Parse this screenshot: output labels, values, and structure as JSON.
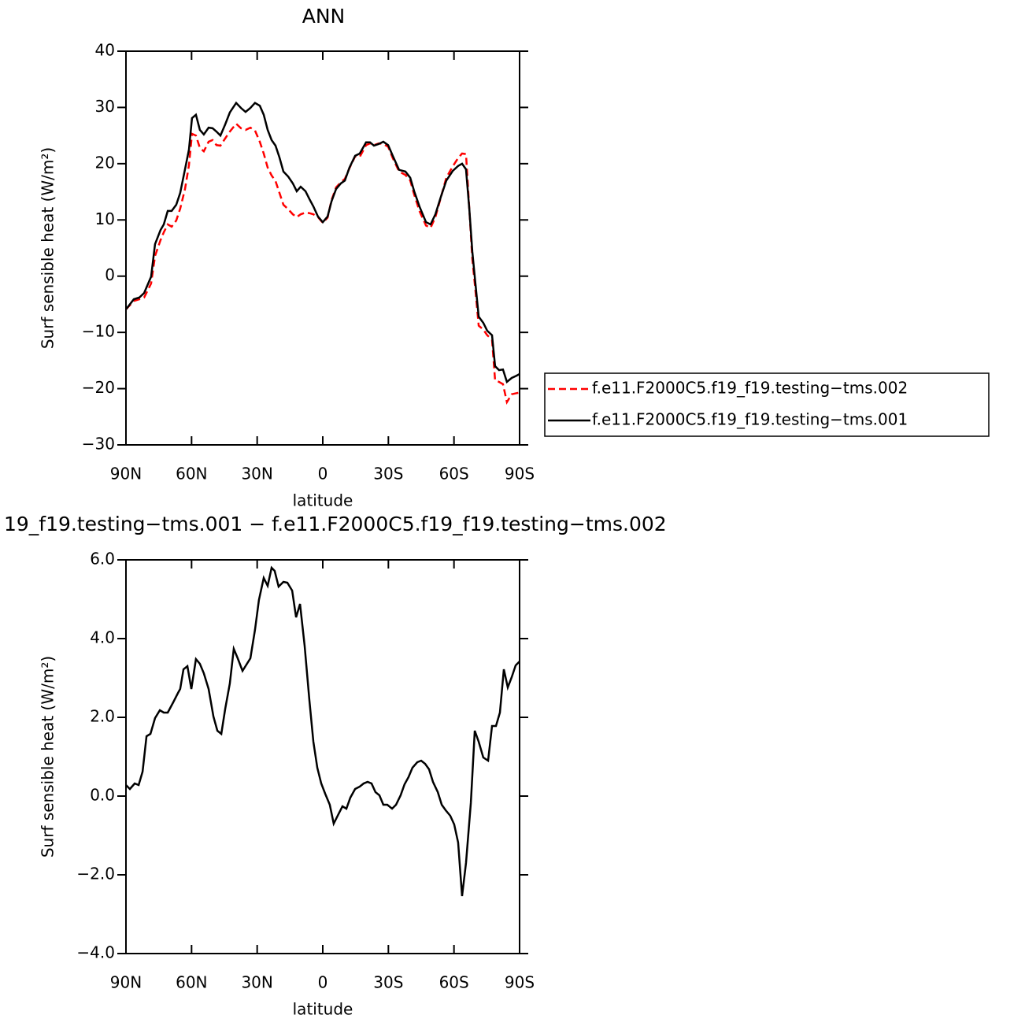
{
  "chart_data": [
    {
      "type": "line",
      "title": "ANN",
      "xlabel": "latitude",
      "ylabel": "Surf sensible heat (W/m²)",
      "xlim": [
        90,
        -90
      ],
      "ylim": [
        -30,
        40
      ],
      "xticks": [
        {
          "value": 90,
          "label": "90N"
        },
        {
          "value": 60,
          "label": "60N"
        },
        {
          "value": 30,
          "label": "30N"
        },
        0,
        {
          "value": -30,
          "label": "30S"
        },
        {
          "value": -60,
          "label": "60S"
        },
        {
          "value": -90,
          "label": "90S"
        }
      ],
      "yticks": [
        40,
        30,
        20,
        10,
        0,
        {
          "value": -10,
          "label": "−10"
        },
        {
          "value": -20,
          "label": "−20"
        },
        {
          "value": -30,
          "label": "−30"
        }
      ],
      "legend": "right",
      "x": [
        90,
        86.4,
        83.9,
        81.7,
        78.5,
        76.7,
        74.2,
        72.7,
        70.9,
        69.1,
        67,
        65.2,
        63,
        61.2,
        59.8,
        58,
        56.2,
        54.4,
        52.2,
        50.4,
        48.6,
        46.8,
        44.6,
        42.5,
        39.6,
        37.4,
        35.3,
        33.1,
        31,
        28.8,
        27,
        25.2,
        23.4,
        21.6,
        19.8,
        18,
        15.8,
        13.7,
        11.9,
        10.1,
        7.9,
        6.1,
        4.3,
        2.2,
        0,
        -2.2,
        -4,
        -6.1,
        -8.3,
        -10.1,
        -12.2,
        -14.8,
        -16.9,
        -19.8,
        -21.6,
        -23.4,
        -25.6,
        -27.7,
        -29.9,
        -32,
        -34.9,
        -37.8,
        -40,
        -41.8,
        -44.3,
        -47.2,
        -49.3,
        -51.5,
        -54,
        -56.5,
        -59.4,
        -61.9,
        -63.7,
        -65.5,
        -67,
        -68.4,
        -69.8,
        -71.3,
        -73.4,
        -75.2,
        -77.4,
        -78.8,
        -80.6,
        -82.4,
        -84.2,
        -86.4,
        -88.6,
        -90
      ],
      "series": [
        {
          "name": "f.e11.F2000C5.f19_f19.testing−tms.002",
          "color": "#ff0000",
          "dashed": true,
          "values": [
            -5.9,
            -4.4,
            -4.1,
            -3.8,
            -1.3,
            3.6,
            6.4,
            7.8,
            9.2,
            8.8,
            9.9,
            12,
            15.5,
            19.7,
            25.3,
            25,
            22.8,
            22.2,
            23.9,
            24.2,
            23.3,
            23.2,
            24.5,
            25.7,
            27.1,
            26.3,
            26,
            26.4,
            25.9,
            23.9,
            21.8,
            19.3,
            17.9,
            16.9,
            14.8,
            12.7,
            11.9,
            11,
            10.5,
            11,
            11.3,
            11.2,
            11,
            10.5,
            9.5,
            10.4,
            13.5,
            15.8,
            16.7,
            17.3,
            19.2,
            21.3,
            21.2,
            23.3,
            23.6,
            23.3,
            23.6,
            23.5,
            23,
            21,
            18.6,
            18,
            17,
            14.5,
            11.5,
            9,
            8.6,
            10.5,
            14,
            17.5,
            19.5,
            21,
            21.8,
            21.7,
            12,
            3,
            -2.5,
            -8.8,
            -9.5,
            -10.5,
            -11.3,
            -18.5,
            -18.8,
            -19.2,
            -22.4,
            -21,
            -20.8,
            -20.7
          ]
        },
        {
          "name": "f.e11.F2000C5.f19_f19.testing−tms.001",
          "color": "#000000",
          "dashed": false,
          "values": [
            -5.9,
            -4.1,
            -3.8,
            -3,
            -0.1,
            5.7,
            8.2,
            9.2,
            11.6,
            11.6,
            12.7,
            14.8,
            19,
            22.5,
            28.1,
            28.7,
            26,
            25.2,
            26.4,
            26.3,
            25.7,
            25,
            27,
            29.1,
            30.8,
            29.9,
            29.2,
            29.9,
            30.8,
            30.3,
            28.7,
            26,
            24.2,
            23.2,
            21.1,
            18.6,
            17.7,
            16.5,
            15.1,
            15.9,
            15.1,
            13.7,
            12.4,
            10.6,
            9.6,
            10.6,
            13.3,
            15.5,
            16.5,
            17,
            19.3,
            21.4,
            21.8,
            23.8,
            23.8,
            23.2,
            23.5,
            23.9,
            23.3,
            21.4,
            18.9,
            18.6,
            17.5,
            15.1,
            12.3,
            9.6,
            9.2,
            11,
            14.1,
            17,
            18.7,
            19.6,
            20,
            19,
            12,
            4.3,
            -1.3,
            -7.2,
            -8.3,
            -9.7,
            -10.5,
            -16,
            -16.7,
            -16.6,
            -18.8,
            -18.1,
            -17.7,
            -17.4
          ]
        }
      ]
    },
    {
      "type": "line",
      "title": "19_f19.testing−tms.001 − f.e11.F2000C5.f19_f19.testing−tms.002",
      "xlabel": "latitude",
      "ylabel": "Surf sensible heat (W/m²)",
      "xlim": [
        90,
        -90
      ],
      "ylim": [
        -4,
        6
      ],
      "xticks": [
        {
          "value": 90,
          "label": "90N"
        },
        {
          "value": 60,
          "label": "60N"
        },
        {
          "value": 30,
          "label": "30N"
        },
        0,
        {
          "value": -30,
          "label": "30S"
        },
        {
          "value": -60,
          "label": "60S"
        },
        {
          "value": -90,
          "label": "90S"
        }
      ],
      "yticks": [
        {
          "value": 6,
          "label": "6.0"
        },
        {
          "value": 4,
          "label": "4.0"
        },
        {
          "value": 2,
          "label": "2.0"
        },
        {
          "value": 0,
          "label": "0.0"
        },
        {
          "value": -2,
          "label": "−2.0"
        },
        {
          "value": -4,
          "label": "−4.0"
        }
      ],
      "color": "#000000",
      "x": [
        90,
        88.2,
        86,
        84.2,
        82.4,
        80.6,
        78.8,
        76.7,
        74.5,
        72.7,
        70.9,
        68.4,
        66.2,
        65.2,
        63.7,
        61.9,
        60.1,
        58,
        56.2,
        54.4,
        52.2,
        50,
        48.2,
        46.4,
        44.6,
        42.5,
        40.7,
        38.9,
        36.7,
        34.9,
        33.1,
        31,
        29.2,
        27,
        25.2,
        23.4,
        22,
        20.2,
        18,
        16.2,
        14,
        12.2,
        10.4,
        8.3,
        6.1,
        4.3,
        2.5,
        0.7,
        -1.1,
        -3.2,
        -5,
        -6.8,
        -9,
        -10.8,
        -12.6,
        -14.8,
        -16.9,
        -18.7,
        -20.5,
        -22.3,
        -24.1,
        -25.9,
        -27.7,
        -29.5,
        -31.7,
        -33.5,
        -35.6,
        -37.4,
        -39.2,
        -41,
        -43.2,
        -45,
        -46.8,
        -48.6,
        -50.4,
        -52.6,
        -54.4,
        -56.2,
        -58.3,
        -60.1,
        -61.9,
        -63.7,
        -65.5,
        -67.7,
        -69.5,
        -71.3,
        -73.4,
        -75.6,
        -77.4,
        -79.2,
        -81,
        -82.8,
        -84.6,
        -86.4,
        -88.2,
        -90
      ],
      "values": [
        0.28,
        0.18,
        0.32,
        0.28,
        0.62,
        1.52,
        1.58,
        1.98,
        2.18,
        2.12,
        2.12,
        2.38,
        2.62,
        2.72,
        3.22,
        3.3,
        2.72,
        3.48,
        3.36,
        3.12,
        2.72,
        2.02,
        1.66,
        1.58,
        2.22,
        2.86,
        3.74,
        3.5,
        3.18,
        3.34,
        3.5,
        4.22,
        4.98,
        5.54,
        5.34,
        5.8,
        5.72,
        5.32,
        5.44,
        5.42,
        5.22,
        4.54,
        4.88,
        3.82,
        2.42,
        1.38,
        0.72,
        0.32,
        0.06,
        -0.22,
        -0.7,
        -0.5,
        -0.26,
        -0.32,
        -0.04,
        0.18,
        0.24,
        0.32,
        0.36,
        0.32,
        0.1,
        0.02,
        -0.22,
        -0.22,
        -0.32,
        -0.22,
        0.02,
        0.3,
        0.48,
        0.72,
        0.86,
        0.9,
        0.82,
        0.68,
        0.36,
        0.1,
        -0.22,
        -0.36,
        -0.5,
        -0.72,
        -1.18,
        -2.54,
        -1.7,
        -0.18,
        1.66,
        1.38,
        0.98,
        0.9,
        1.78,
        1.78,
        2.12,
        3.22,
        2.76,
        3.02,
        3.32,
        3.42
      ]
    }
  ]
}
